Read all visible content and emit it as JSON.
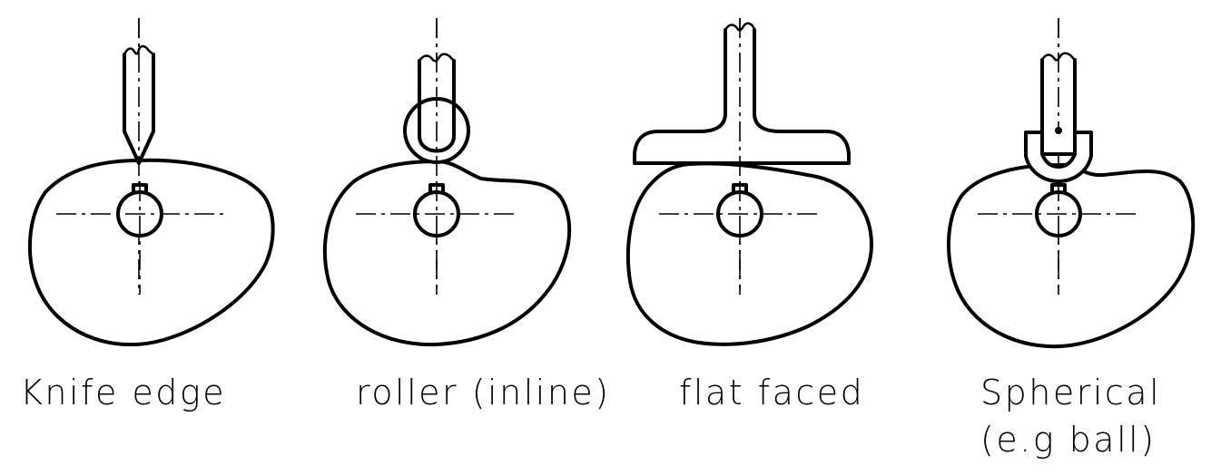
{
  "labels": {
    "knife": "Knife edge",
    "roller": "roller (inline)",
    "flat": "flat faced",
    "spherical_line1": "Spherical",
    "spherical_line2": "(e.g ball)"
  },
  "colors": {
    "ink": "#000000",
    "background": "#ffffff"
  }
}
